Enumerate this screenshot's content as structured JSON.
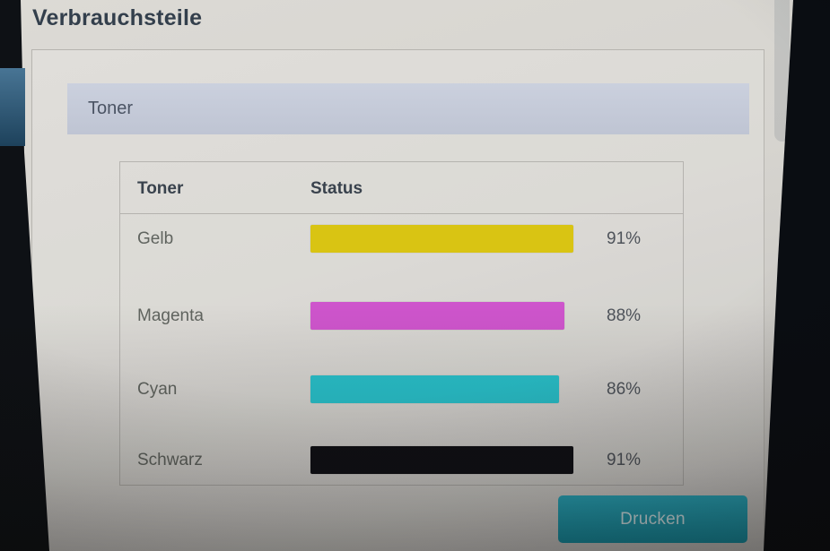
{
  "page": {
    "title": "Verbrauchsteile"
  },
  "toner_section": {
    "header": "Toner"
  },
  "toner_table": {
    "columns": {
      "toner": "Toner",
      "status": "Status"
    },
    "rows": [
      {
        "name": "Gelb",
        "percent": 91,
        "percent_label": "91%",
        "color": "#d9c413"
      },
      {
        "name": "Magenta",
        "percent": 88,
        "percent_label": "88%",
        "color": "#ce55cc"
      },
      {
        "name": "Cyan",
        "percent": 86,
        "percent_label": "86%",
        "color": "#29c0ca"
      },
      {
        "name": "Schwarz",
        "percent": 91,
        "percent_label": "91%",
        "color": "#101015"
      }
    ]
  },
  "actions": {
    "print": "Drucken"
  },
  "colors": {
    "accent_button": "#18a2b8",
    "section_header_bg": "#c5cbda",
    "nav_highlight": "#2a5e83"
  }
}
